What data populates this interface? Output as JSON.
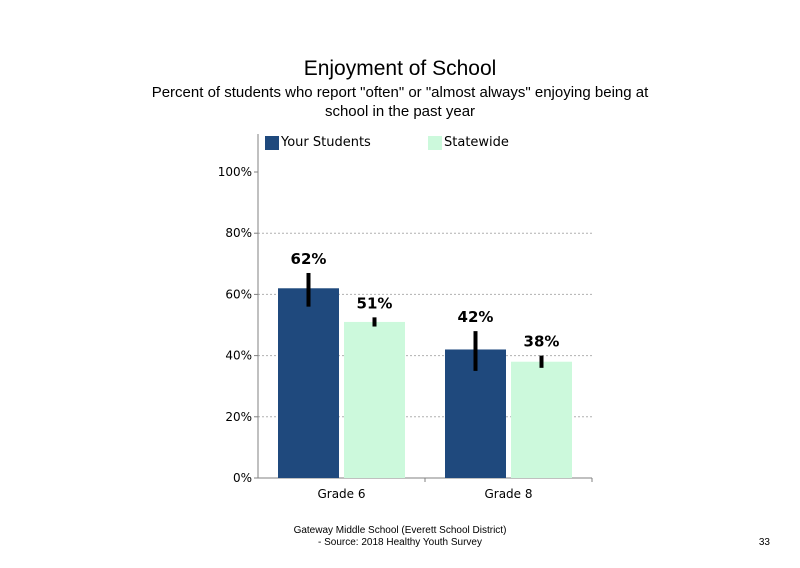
{
  "chart_data": {
    "type": "bar",
    "title": "Enjoyment  of School",
    "subtitle": "Percent of students  who report \"often\" or \"almost  always\" enjoying being at school in the past year",
    "categories": [
      "Grade 6",
      "Grade 8"
    ],
    "series": [
      {
        "name": "Your Students",
        "color": "#1f497d",
        "values": [
          62,
          42
        ],
        "labels": [
          "62%",
          "42%"
        ],
        "error_bars": [
          [
            56,
            67
          ],
          [
            35,
            48
          ]
        ]
      },
      {
        "name": "Statewide",
        "color": "#ccf9dc",
        "values": [
          51,
          38
        ],
        "labels": [
          "51%",
          "38%"
        ],
        "error_bars": [
          [
            49.5,
            52.5
          ],
          [
            36,
            40
          ]
        ]
      }
    ],
    "ylim": [
      0,
      100
    ],
    "yticks": [
      "0%",
      "20%",
      "40%",
      "60%",
      "80%",
      "100%"
    ],
    "grid": true,
    "legend": "top"
  },
  "footer": {
    "line1": "Gateway Middle  School  (Everett School District)",
    "line2": "- Source: 2018 Healthy  Youth Survey"
  },
  "page_number": "33"
}
